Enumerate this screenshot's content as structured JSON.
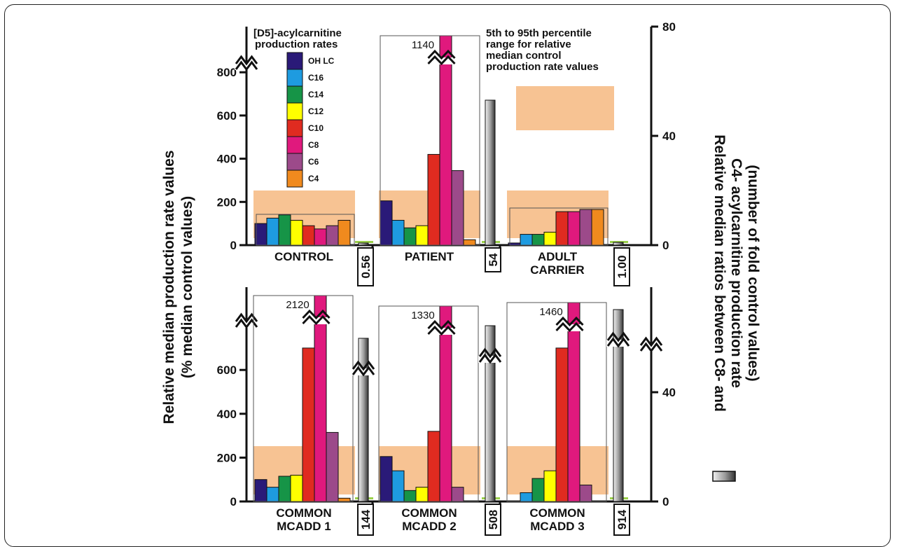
{
  "chart_data": {
    "type": "bar",
    "left_axis_label_line1": "Relative median production rate  values",
    "left_axis_label_line2": "(% median control values)",
    "right_axis_label_line1": "Relative median ratios between  C8- and",
    "right_axis_label_line2": "C4- acylcarnitine production rate",
    "right_axis_label_line3": "(number of fold control values)",
    "legend_title_line1": "[D5]-acylcarnitine",
    "legend_title_line2": "production rates",
    "range_note_lines": [
      "5th to 95th percentile",
      "range for relative",
      "median control",
      "production rate values"
    ],
    "series": [
      {
        "name": "OH LC",
        "color": "#2a1a78"
      },
      {
        "name": "C16",
        "color": "#1e9be0"
      },
      {
        "name": "C14",
        "color": "#169447"
      },
      {
        "name": "C12",
        "color": "#ffff00"
      },
      {
        "name": "C10",
        "color": "#e02b20"
      },
      {
        "name": "C8",
        "color": "#e0197d"
      },
      {
        "name": "C6",
        "color": "#9c4a8a"
      },
      {
        "name": "C4",
        "color": "#f08a1e"
      }
    ],
    "top_row": {
      "left_ticks": [
        "0",
        "200",
        "400",
        "600",
        "800"
      ],
      "left_ylim": [
        0,
        800
      ],
      "right_ticks": [
        "0",
        "40",
        "80"
      ],
      "right_ylim": [
        0,
        80
      ],
      "panels": [
        {
          "label_lines": [
            "CONTROL"
          ],
          "values": [
            100,
            125,
            140,
            115,
            90,
            75,
            90,
            115
          ],
          "ratio": 0.56,
          "ratio_label": "0.56"
        },
        {
          "label_lines": [
            "PATIENT"
          ],
          "values": [
            205,
            115,
            80,
            90,
            420,
            1140,
            345,
            25
          ],
          "ratio": 54,
          "ratio_label": "54",
          "break_label": "1140"
        },
        {
          "label_lines": [
            "ADULT",
            "CARRIER"
          ],
          "values": [
            10,
            50,
            50,
            60,
            155,
            155,
            165,
            165
          ],
          "ratio": 1.0,
          "ratio_label": "1.00"
        }
      ]
    },
    "bottom_row": {
      "left_ticks": [
        "0",
        "200",
        "400",
        "600"
      ],
      "left_ylim": [
        0,
        700
      ],
      "right_ticks": [
        "0",
        "40"
      ],
      "right_ylim": [
        0,
        40
      ],
      "panels": [
        {
          "label_lines": [
            "COMMON",
            "MCADD 1"
          ],
          "values": [
            100,
            65,
            115,
            120,
            700,
            2120,
            315,
            15
          ],
          "ratio": 144,
          "ratio_label": "144",
          "break_label": "2120"
        },
        {
          "label_lines": [
            "COMMON",
            "MCADD 2"
          ],
          "values": [
            205,
            140,
            50,
            65,
            320,
            1330,
            65,
            0
          ],
          "ratio": 508,
          "ratio_label": "508",
          "break_label": "1330"
        },
        {
          "label_lines": [
            "COMMON",
            "MCADD 3"
          ],
          "values": [
            0,
            40,
            105,
            140,
            700,
            1460,
            75,
            0
          ],
          "ratio": 914,
          "ratio_label": "914",
          "break_label": "1460"
        }
      ]
    }
  }
}
